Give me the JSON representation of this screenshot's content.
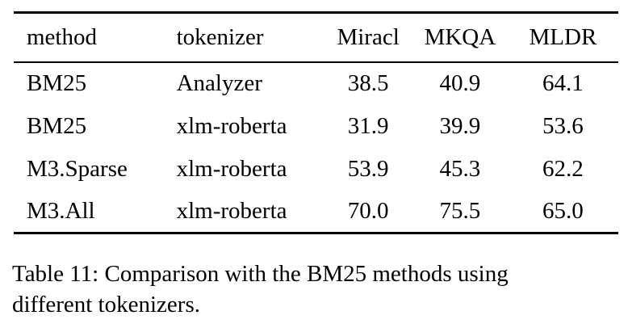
{
  "table": {
    "columns": [
      {
        "label": "method"
      },
      {
        "label": "tokenizer"
      },
      {
        "label": "Miracl"
      },
      {
        "label": "MKQA"
      },
      {
        "label": "MLDR"
      }
    ],
    "rows": [
      [
        "BM25",
        "Analyzer",
        "38.5",
        "40.9",
        "64.1"
      ],
      [
        "BM25",
        "xlm-roberta",
        "31.9",
        "39.9",
        "53.6"
      ],
      [
        "M3.Sparse",
        "xlm-roberta",
        "53.9",
        "45.3",
        "62.2"
      ],
      [
        "M3.All",
        "xlm-roberta",
        "70.0",
        "75.5",
        "65.0"
      ]
    ]
  },
  "caption": {
    "full_text": "Table 11: Comparison with the BM25 methods using different tokenizers.",
    "lines": [
      "Table 11: Comparison with the BM25 methods using",
      "different tokenizers."
    ]
  },
  "colors": {
    "text": "#000000",
    "background": "#ffffff",
    "rule": "#000000"
  }
}
